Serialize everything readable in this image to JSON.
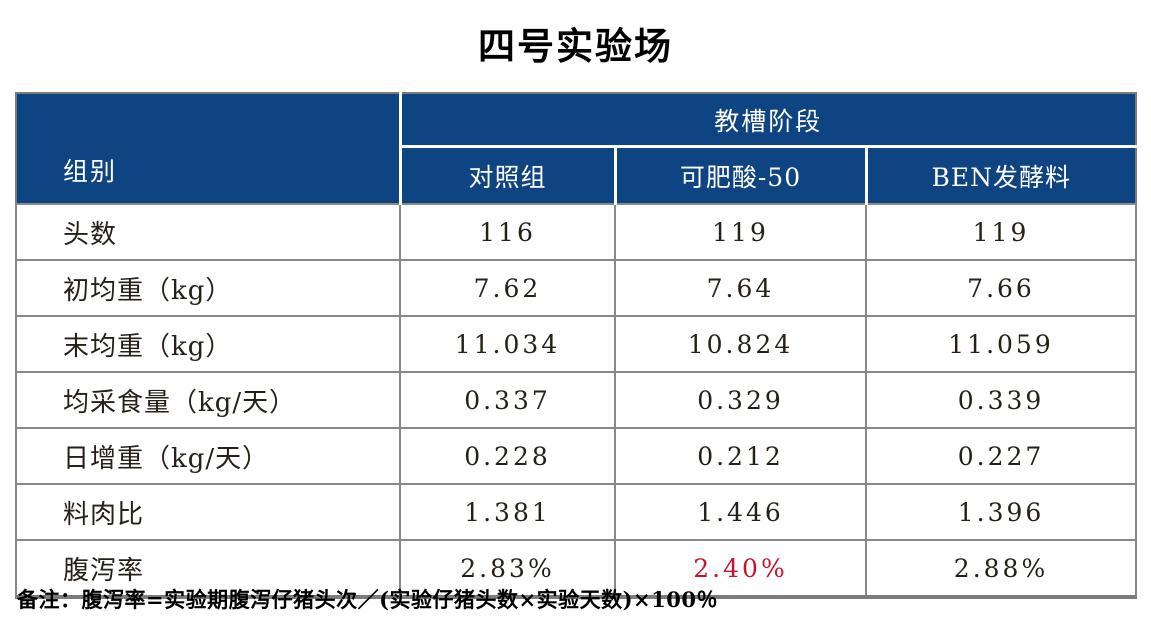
{
  "title": "四号实验场",
  "table": {
    "group_header": "组别",
    "stage_header": "教槽阶段",
    "columns": [
      "对照组",
      "可肥酸-50",
      "BEN发酵料"
    ],
    "rows": [
      {
        "label": "头数",
        "values": [
          "116",
          "119",
          "119"
        ]
      },
      {
        "label": "初均重（kg）",
        "values": [
          "7.62",
          "7.64",
          "7.66"
        ]
      },
      {
        "label": "末均重（kg）",
        "values": [
          "11.034",
          "10.824",
          "11.059"
        ]
      },
      {
        "label": "均采食量（kg/天）",
        "values": [
          "0.337",
          "0.329",
          "0.339"
        ]
      },
      {
        "label": "日增重（kg/天）",
        "values": [
          "0.228",
          "0.212",
          "0.227"
        ]
      },
      {
        "label": "料肉比",
        "values": [
          "1.381",
          "1.446",
          "1.396"
        ]
      },
      {
        "label": "腹泻率",
        "values": [
          "2.83%",
          "2.40%",
          "2.88%"
        ],
        "highlight": [
          false,
          true,
          false
        ]
      }
    ]
  },
  "note": "备注：腹泻率=实验期腹泻仔猪头次／(实验仔猪头数×实验天数)×100％",
  "colors": {
    "header_bg": "#0e4482",
    "header_text": "#ffffff",
    "body_text": "#262019",
    "highlight_red": "#c9122d",
    "border_gray": "#898989",
    "outer_border": "#7c7c7c"
  }
}
